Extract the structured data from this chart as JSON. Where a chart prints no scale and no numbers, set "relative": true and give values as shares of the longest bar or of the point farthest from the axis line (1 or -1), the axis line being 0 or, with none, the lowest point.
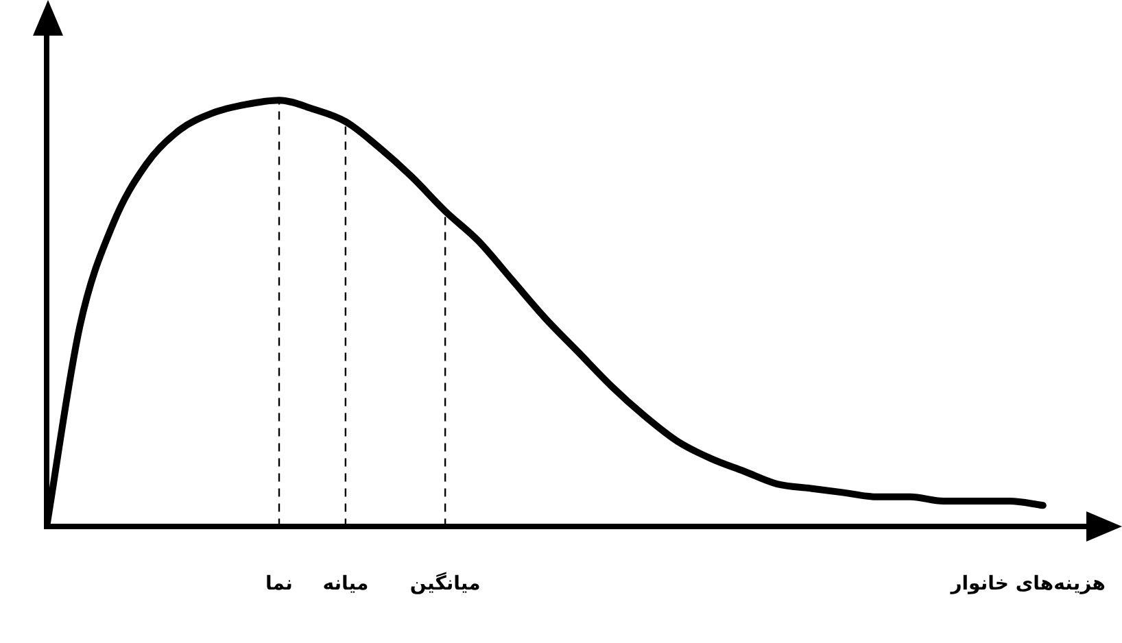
{
  "chart_data": {
    "type": "line",
    "relative": true,
    "xlabel": "هزینه‌های خانوار",
    "categories": [
      null,
      null,
      null,
      null,
      null,
      null,
      null,
      "نما",
      null,
      "میانه",
      null,
      null,
      "میانگین",
      null,
      null,
      null,
      null,
      null,
      null,
      null,
      null,
      null,
      null,
      null,
      null,
      null,
      null,
      null,
      null,
      null,
      null
    ],
    "series": [
      {
        "color": "#000000",
        "values": [
          0,
          0.47,
          0.71,
          0.85,
          0.93,
          0.97,
          0.99,
          1,
          0.98,
          0.95,
          0.89,
          0.82,
          0.74,
          0.67,
          0.58,
          0.49,
          0.41,
          0.33,
          0.26,
          0.2,
          0.16,
          0.13,
          0.1,
          0.09,
          0.08,
          0.07,
          0.07,
          0.06,
          0.06,
          0.06,
          0.05
        ]
      }
    ],
    "ref_lines": [
      {
        "axis": "x",
        "value": "نما",
        "color": "#000000",
        "line_style": "dashed"
      },
      {
        "axis": "x",
        "value": "میانه",
        "color": "#000000",
        "line_style": "dashed"
      },
      {
        "axis": "x",
        "value": "میانگین",
        "color": "#000000",
        "line_style": "dashed"
      }
    ],
    "grid": false,
    "legend": false,
    "tick_labels": "x",
    "marker": "none",
    "line_style": "solid"
  }
}
